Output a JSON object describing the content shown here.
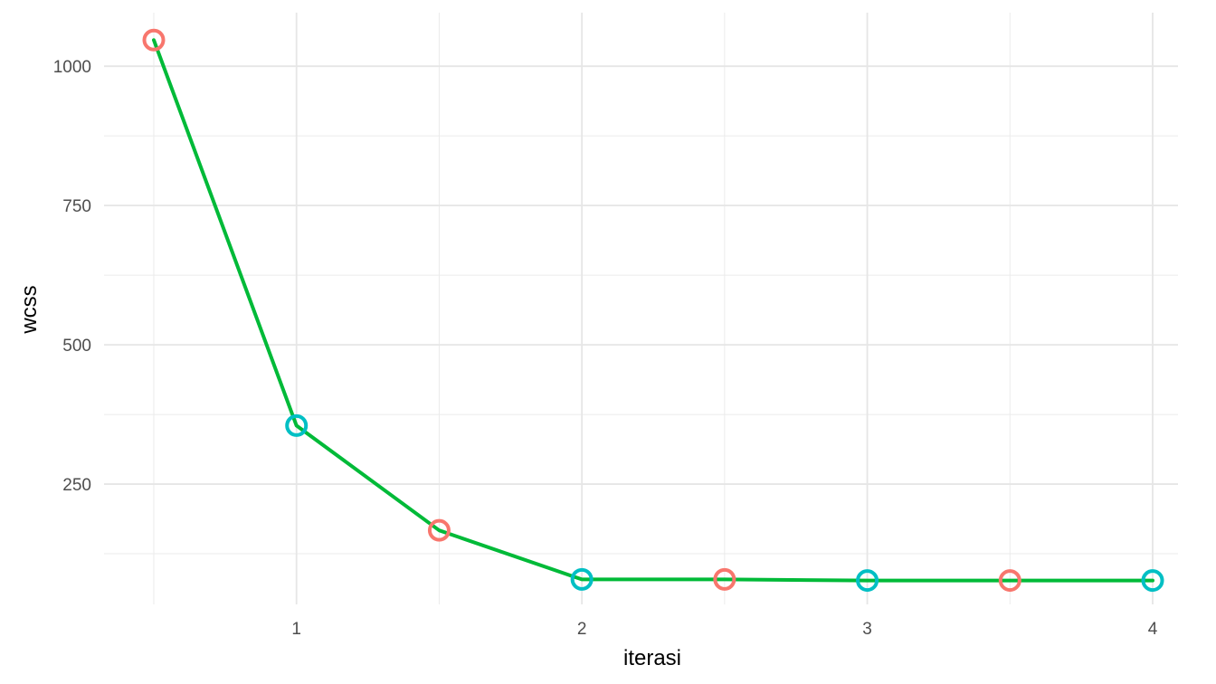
{
  "chart_data": {
    "type": "line",
    "title": "",
    "xlabel": "iterasi",
    "ylabel": "wcss",
    "xlim": [
      0.5,
      4.0
    ],
    "ylim": [
      20,
      1095
    ],
    "x_ticks": [
      1,
      2,
      3,
      4
    ],
    "x_tick_labels": [
      "1",
      "2",
      "3",
      "4"
    ],
    "y_ticks": [
      250,
      500,
      750,
      1000
    ],
    "y_tick_labels": [
      "250",
      "500",
      "750",
      "1000"
    ],
    "x_minor_ticks": [
      0.5,
      1.5,
      2.5,
      3.5
    ],
    "y_minor_ticks": [
      125,
      375,
      625,
      875
    ],
    "grid": true,
    "line_color": "#00BA38",
    "series": [
      {
        "values": [
          {
            "x": 0.5,
            "y": 1047,
            "group": "A"
          },
          {
            "x": 1.0,
            "y": 355,
            "group": "B"
          },
          {
            "x": 1.5,
            "y": 167,
            "group": "A"
          },
          {
            "x": 2.0,
            "y": 79,
            "group": "B"
          },
          {
            "x": 2.5,
            "y": 79,
            "group": "A"
          },
          {
            "x": 3.0,
            "y": 77,
            "group": "B"
          },
          {
            "x": 3.5,
            "y": 77,
            "group": "A"
          },
          {
            "x": 4.0,
            "y": 77,
            "group": "B"
          }
        ]
      }
    ],
    "point_colors": {
      "A": "#F8766D",
      "B": "#00BFC4"
    }
  }
}
